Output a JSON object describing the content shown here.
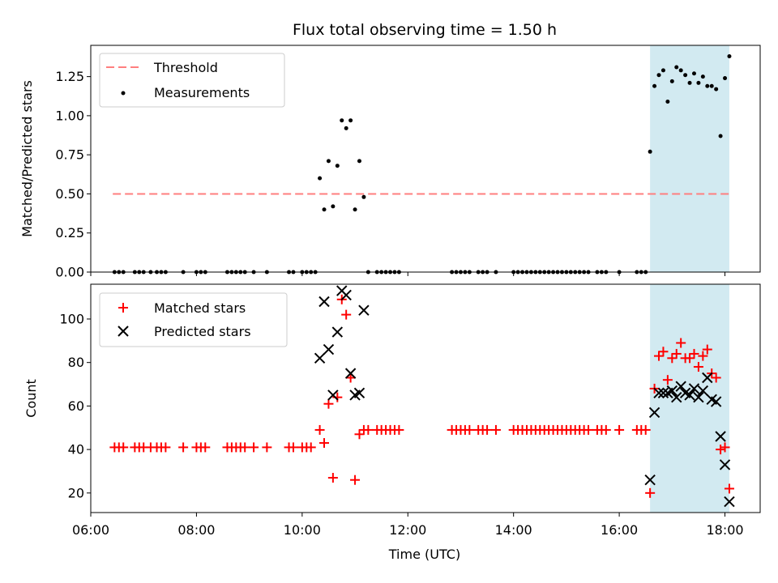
{
  "chart_data": [
    {
      "type": "scatter",
      "title": "Flux total observing time = 1.50 h",
      "xlabel": "",
      "ylabel": "Matched/Predicted stars",
      "xlim": [
        "06:00",
        "18:40"
      ],
      "ylim": [
        0,
        1.45
      ],
      "yticks": [
        "0.00",
        "0.25",
        "0.50",
        "0.75",
        "1.00",
        "1.25"
      ],
      "xtick_labels_shown": false,
      "legend": {
        "position": "top-left",
        "entries": [
          "Threshold",
          "Measurements"
        ]
      },
      "highlight_span": {
        "x_start": "16:35",
        "x_end": "18:05",
        "color": "#add8e6"
      },
      "threshold": {
        "name": "Threshold",
        "value": 0.5,
        "x_start": "06:25",
        "x_end": "18:05",
        "color": "#ff7f7f",
        "style": "dashed"
      },
      "series": [
        {
          "name": "Measurements",
          "color": "#000000",
          "marker": "dot",
          "points": [
            [
              "06:27",
              0
            ],
            [
              "06:32",
              0
            ],
            [
              "06:37",
              0
            ],
            [
              "06:50",
              0
            ],
            [
              "06:55",
              0
            ],
            [
              "07:00",
              0
            ],
            [
              "07:08",
              0
            ],
            [
              "07:15",
              0
            ],
            [
              "07:20",
              0
            ],
            [
              "07:25",
              0
            ],
            [
              "07:45",
              0
            ],
            [
              "08:00",
              0
            ],
            [
              "08:05",
              0
            ],
            [
              "08:10",
              0
            ],
            [
              "08:35",
              0
            ],
            [
              "08:40",
              0
            ],
            [
              "08:45",
              0
            ],
            [
              "08:50",
              0
            ],
            [
              "08:55",
              0
            ],
            [
              "09:05",
              0
            ],
            [
              "09:20",
              0
            ],
            [
              "09:45",
              0
            ],
            [
              "09:50",
              0
            ],
            [
              "10:00",
              0
            ],
            [
              "10:05",
              0
            ],
            [
              "10:10",
              0
            ],
            [
              "10:15",
              0
            ],
            [
              "10:20",
              0.6
            ],
            [
              "10:25",
              0.4
            ],
            [
              "10:30",
              0.71
            ],
            [
              "10:35",
              0.42
            ],
            [
              "10:40",
              0.68
            ],
            [
              "10:45",
              0.97
            ],
            [
              "10:50",
              0.92
            ],
            [
              "10:55",
              0.97
            ],
            [
              "11:00",
              0.4
            ],
            [
              "11:05",
              0.71
            ],
            [
              "11:10",
              0.48
            ],
            [
              "11:15",
              0
            ],
            [
              "11:25",
              0
            ],
            [
              "11:30",
              0
            ],
            [
              "11:35",
              0
            ],
            [
              "11:40",
              0
            ],
            [
              "11:45",
              0
            ],
            [
              "11:50",
              0
            ],
            [
              "12:50",
              0
            ],
            [
              "12:55",
              0
            ],
            [
              "13:00",
              0
            ],
            [
              "13:05",
              0
            ],
            [
              "13:10",
              0
            ],
            [
              "13:20",
              0
            ],
            [
              "13:25",
              0
            ],
            [
              "13:30",
              0
            ],
            [
              "13:40",
              0
            ],
            [
              "14:00",
              0
            ],
            [
              "14:05",
              0
            ],
            [
              "14:10",
              0
            ],
            [
              "14:15",
              0
            ],
            [
              "14:20",
              0
            ],
            [
              "14:25",
              0
            ],
            [
              "14:30",
              0
            ],
            [
              "14:35",
              0
            ],
            [
              "14:40",
              0
            ],
            [
              "14:45",
              0
            ],
            [
              "14:50",
              0
            ],
            [
              "14:55",
              0
            ],
            [
              "15:00",
              0
            ],
            [
              "15:05",
              0
            ],
            [
              "15:10",
              0
            ],
            [
              "15:15",
              0
            ],
            [
              "15:20",
              0
            ],
            [
              "15:25",
              0
            ],
            [
              "15:35",
              0
            ],
            [
              "15:40",
              0
            ],
            [
              "15:45",
              0
            ],
            [
              "16:00",
              0
            ],
            [
              "16:20",
              0
            ],
            [
              "16:25",
              0
            ],
            [
              "16:30",
              0
            ],
            [
              "16:35",
              0.77
            ],
            [
              "16:40",
              1.19
            ],
            [
              "16:45",
              1.26
            ],
            [
              "16:50",
              1.29
            ],
            [
              "16:55",
              1.09
            ],
            [
              "17:00",
              1.22
            ],
            [
              "17:05",
              1.31
            ],
            [
              "17:10",
              1.29
            ],
            [
              "17:15",
              1.26
            ],
            [
              "17:20",
              1.21
            ],
            [
              "17:25",
              1.27
            ],
            [
              "17:30",
              1.21
            ],
            [
              "17:35",
              1.25
            ],
            [
              "17:40",
              1.19
            ],
            [
              "17:45",
              1.19
            ],
            [
              "17:50",
              1.17
            ],
            [
              "17:55",
              0.87
            ],
            [
              "18:00",
              1.24
            ],
            [
              "18:05",
              1.38
            ]
          ]
        }
      ]
    },
    {
      "type": "scatter",
      "title": "",
      "xlabel": "Time (UTC)",
      "ylabel": "Count",
      "xlim": [
        "06:00",
        "18:40"
      ],
      "ylim": [
        11,
        116
      ],
      "yticks": [
        "20",
        "40",
        "60",
        "80",
        "100"
      ],
      "xticks": [
        "06:00",
        "08:00",
        "10:00",
        "12:00",
        "14:00",
        "16:00",
        "18:00"
      ],
      "legend": {
        "position": "top-left",
        "entries": [
          "Matched stars",
          "Predicted stars"
        ]
      },
      "highlight_span": {
        "x_start": "16:35",
        "x_end": "18:05",
        "color": "#add8e6"
      },
      "series": [
        {
          "name": "Matched stars",
          "color": "#ff0000",
          "marker": "plus",
          "points": [
            [
              "06:27",
              41
            ],
            [
              "06:32",
              41
            ],
            [
              "06:37",
              41
            ],
            [
              "06:50",
              41
            ],
            [
              "06:55",
              41
            ],
            [
              "07:00",
              41
            ],
            [
              "07:08",
              41
            ],
            [
              "07:15",
              41
            ],
            [
              "07:20",
              41
            ],
            [
              "07:25",
              41
            ],
            [
              "07:45",
              41
            ],
            [
              "08:00",
              41
            ],
            [
              "08:05",
              41
            ],
            [
              "08:10",
              41
            ],
            [
              "08:35",
              41
            ],
            [
              "08:40",
              41
            ],
            [
              "08:45",
              41
            ],
            [
              "08:50",
              41
            ],
            [
              "08:55",
              41
            ],
            [
              "09:05",
              41
            ],
            [
              "09:20",
              41
            ],
            [
              "09:45",
              41
            ],
            [
              "09:50",
              41
            ],
            [
              "10:00",
              41
            ],
            [
              "10:05",
              41
            ],
            [
              "10:10",
              41
            ],
            [
              "10:20",
              49
            ],
            [
              "10:25",
              43
            ],
            [
              "10:30",
              61
            ],
            [
              "10:35",
              27
            ],
            [
              "10:40",
              64
            ],
            [
              "10:45",
              109
            ],
            [
              "10:50",
              102
            ],
            [
              "10:55",
              73
            ],
            [
              "11:00",
              26
            ],
            [
              "11:05",
              47
            ],
            [
              "11:10",
              49
            ],
            [
              "11:15",
              49
            ],
            [
              "11:25",
              49
            ],
            [
              "11:30",
              49
            ],
            [
              "11:35",
              49
            ],
            [
              "11:40",
              49
            ],
            [
              "11:45",
              49
            ],
            [
              "11:50",
              49
            ],
            [
              "12:50",
              49
            ],
            [
              "12:55",
              49
            ],
            [
              "13:00",
              49
            ],
            [
              "13:05",
              49
            ],
            [
              "13:10",
              49
            ],
            [
              "13:20",
              49
            ],
            [
              "13:25",
              49
            ],
            [
              "13:30",
              49
            ],
            [
              "13:40",
              49
            ],
            [
              "14:00",
              49
            ],
            [
              "14:05",
              49
            ],
            [
              "14:10",
              49
            ],
            [
              "14:15",
              49
            ],
            [
              "14:20",
              49
            ],
            [
              "14:25",
              49
            ],
            [
              "14:30",
              49
            ],
            [
              "14:35",
              49
            ],
            [
              "14:40",
              49
            ],
            [
              "14:45",
              49
            ],
            [
              "14:50",
              49
            ],
            [
              "14:55",
              49
            ],
            [
              "15:00",
              49
            ],
            [
              "15:05",
              49
            ],
            [
              "15:10",
              49
            ],
            [
              "15:15",
              49
            ],
            [
              "15:20",
              49
            ],
            [
              "15:25",
              49
            ],
            [
              "15:35",
              49
            ],
            [
              "15:40",
              49
            ],
            [
              "15:45",
              49
            ],
            [
              "16:00",
              49
            ],
            [
              "16:20",
              49
            ],
            [
              "16:25",
              49
            ],
            [
              "16:30",
              49
            ],
            [
              "16:35",
              20
            ],
            [
              "16:40",
              68
            ],
            [
              "16:45",
              83
            ],
            [
              "16:50",
              85
            ],
            [
              "16:55",
              72
            ],
            [
              "17:00",
              82
            ],
            [
              "17:05",
              84
            ],
            [
              "17:10",
              89
            ],
            [
              "17:15",
              82
            ],
            [
              "17:20",
              82
            ],
            [
              "17:25",
              84
            ],
            [
              "17:30",
              78
            ],
            [
              "17:35",
              83
            ],
            [
              "17:40",
              86
            ],
            [
              "17:45",
              75
            ],
            [
              "17:50",
              73
            ],
            [
              "17:55",
              40
            ],
            [
              "18:00",
              41
            ],
            [
              "18:05",
              22
            ]
          ]
        },
        {
          "name": "Predicted stars",
          "color": "#000000",
          "marker": "cross",
          "points": [
            [
              "10:20",
              82
            ],
            [
              "10:25",
              108
            ],
            [
              "10:30",
              86
            ],
            [
              "10:35",
              65
            ],
            [
              "10:40",
              94
            ],
            [
              "10:45",
              113
            ],
            [
              "10:50",
              111
            ],
            [
              "10:55",
              75
            ],
            [
              "11:00",
              65
            ],
            [
              "11:05",
              66
            ],
            [
              "11:10",
              104
            ],
            [
              "16:35",
              26
            ],
            [
              "16:40",
              57
            ],
            [
              "16:45",
              66
            ],
            [
              "16:50",
              66
            ],
            [
              "16:55",
              66
            ],
            [
              "17:00",
              67
            ],
            [
              "17:05",
              64
            ],
            [
              "17:10",
              69
            ],
            [
              "17:15",
              66
            ],
            [
              "17:20",
              65
            ],
            [
              "17:25",
              68
            ],
            [
              "17:30",
              64
            ],
            [
              "17:35",
              67
            ],
            [
              "17:40",
              73
            ],
            [
              "17:45",
              63
            ],
            [
              "17:50",
              62
            ],
            [
              "17:55",
              46
            ],
            [
              "18:00",
              33
            ],
            [
              "18:05",
              16
            ]
          ]
        }
      ]
    }
  ]
}
